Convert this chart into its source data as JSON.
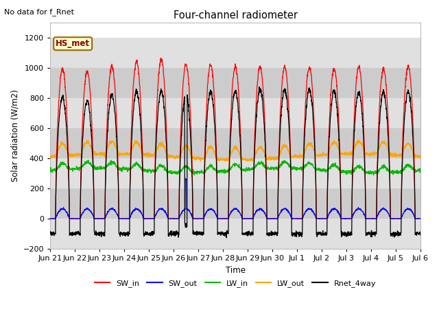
{
  "title": "Four-channel radiometer",
  "top_left_text": "No data for f_Rnet",
  "annotation_box": "HS_met",
  "xlabel": "Time",
  "ylabel": "Solar radiation (W/m2)",
  "ylim": [
    -200,
    1300
  ],
  "yticks": [
    -200,
    0,
    200,
    400,
    600,
    800,
    1000,
    1200
  ],
  "x_tick_labels": [
    "Jun 21",
    "Jun 22",
    "Jun 23",
    "Jun 24",
    "Jun 25",
    "Jun 26",
    "Jun 27",
    "Jun 28",
    "Jun 29",
    "Jun 30",
    "Jul 1",
    "Jul 2",
    "Jul 3",
    "Jul 4",
    "Jul 5",
    "Jul 6"
  ],
  "legend_entries": [
    {
      "label": "SW_in",
      "color": "#ff0000"
    },
    {
      "label": "SW_out",
      "color": "#0000ff"
    },
    {
      "label": "LW_in",
      "color": "#00bb00"
    },
    {
      "label": "LW_out",
      "color": "#ffa500"
    },
    {
      "label": "Rnet_4way",
      "color": "#000000"
    }
  ],
  "band_colors": [
    "#e0e0e0",
    "#cccccc"
  ],
  "bg_color": "#f0f0f0",
  "plot_bg_color": "#ffffff",
  "annotation_bg": "#ffffcc",
  "annotation_border": "#996600",
  "grid_color": "#cccccc"
}
